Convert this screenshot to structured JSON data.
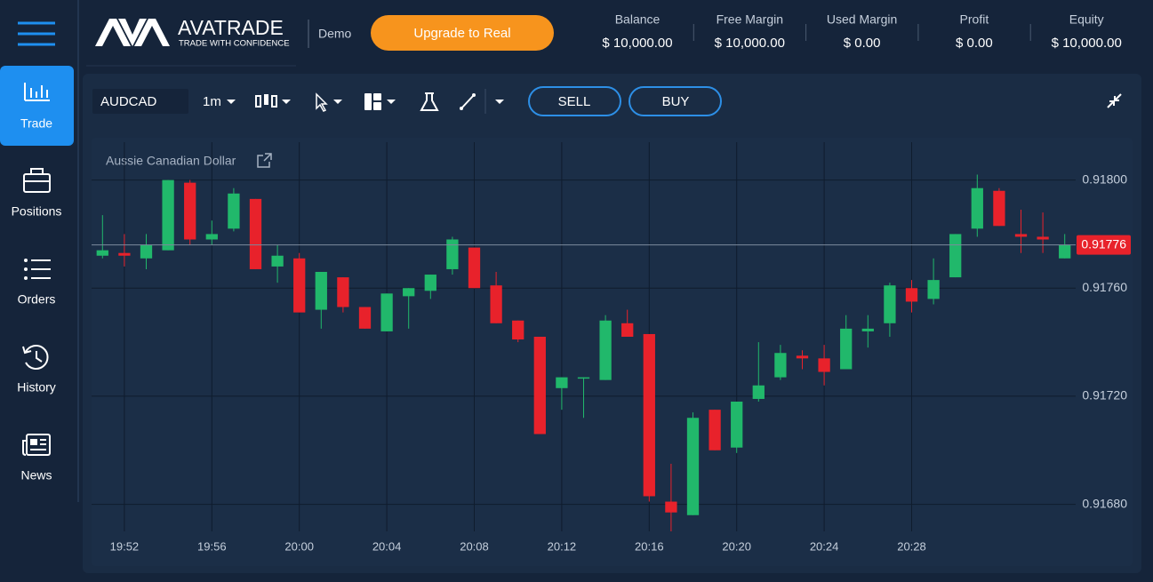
{
  "header": {
    "brand": "AVATRADE",
    "tagline": "TRADE WITH CONFIDENCE",
    "mode": "Demo",
    "upgrade": "Upgrade to Real",
    "stats": [
      {
        "label": "Balance",
        "value": "$ 10,000.00"
      },
      {
        "label": "Free Margin",
        "value": "$ 10,000.00"
      },
      {
        "label": "Used Margin",
        "value": "$ 0.00"
      },
      {
        "label": "Profit",
        "value": "$ 0.00"
      },
      {
        "label": "Equity",
        "value": "$ 10,000.00"
      }
    ]
  },
  "sidebar": {
    "items": [
      "Trade",
      "Positions",
      "Orders",
      "History",
      "News"
    ]
  },
  "toolbar": {
    "symbol": "AUDCAD",
    "interval": "1m",
    "sell": "SELL",
    "buy": "BUY"
  },
  "chart_data": {
    "type": "candlestick",
    "title": "Aussie Canadian Dollar",
    "categories": [
      null,
      "19:52",
      null,
      null,
      null,
      "19:56",
      null,
      null,
      null,
      "20:00",
      null,
      null,
      null,
      "20:04",
      null,
      null,
      null,
      "20:08",
      null,
      null,
      null,
      "20:12",
      null,
      null,
      null,
      "20:16",
      null,
      null,
      null,
      "20:20",
      null,
      null,
      null,
      "20:24",
      null,
      null,
      null,
      "20:28",
      null,
      null,
      null,
      null,
      null,
      null,
      null
    ],
    "open": [
      0.91772,
      0.91773,
      0.91771,
      0.91774,
      0.91799,
      0.91778,
      0.91782,
      0.91793,
      0.91768,
      0.91771,
      0.91752,
      0.91764,
      0.91753,
      0.91744,
      0.91757,
      0.91759,
      0.91767,
      0.91775,
      0.91761,
      0.91748,
      0.91742,
      0.91723,
      0.91727,
      0.91726,
      0.91747,
      0.91743,
      0.91681,
      0.91676,
      0.91715,
      0.91701,
      0.91719,
      0.91727,
      0.91735,
      0.91734,
      0.9173,
      0.91744,
      0.91747,
      0.9176,
      0.91756,
      0.91764,
      0.91782,
      0.91796,
      0.9178,
      0.91779,
      0.91771
    ],
    "high": [
      0.91787,
      0.9178,
      0.9178,
      0.918,
      0.918,
      0.91785,
      0.91797,
      0.91793,
      0.91776,
      0.91773,
      0.91766,
      0.91764,
      0.91753,
      0.91758,
      0.9176,
      0.91765,
      0.91779,
      0.91775,
      0.91766,
      0.91748,
      0.91742,
      0.91727,
      0.91727,
      0.9175,
      0.91752,
      0.91743,
      0.91695,
      0.91714,
      0.91715,
      0.91718,
      0.9174,
      0.91739,
      0.91737,
      0.91739,
      0.9175,
      0.9175,
      0.91762,
      0.91763,
      0.91771,
      0.9178,
      0.91802,
      0.91797,
      0.91789,
      0.91788,
      0.9178
    ],
    "low": [
      0.91771,
      0.91768,
      0.91767,
      0.91774,
      0.91776,
      0.91776,
      0.91781,
      0.91767,
      0.91762,
      0.91751,
      0.91745,
      0.91751,
      0.91745,
      0.91744,
      0.91745,
      0.91756,
      0.91765,
      0.9176,
      0.91747,
      0.9174,
      0.91706,
      0.91715,
      0.91712,
      0.91726,
      0.91742,
      0.91681,
      0.9167,
      0.91676,
      0.917,
      0.91699,
      0.91718,
      0.91726,
      0.9173,
      0.91724,
      0.9173,
      0.91738,
      0.91742,
      0.91751,
      0.91754,
      0.91764,
      0.91779,
      0.91783,
      0.91773,
      0.91773,
      0.91771
    ],
    "close": [
      0.91774,
      0.91772,
      0.91776,
      0.918,
      0.91778,
      0.9178,
      0.91795,
      0.91767,
      0.91772,
      0.91751,
      0.91766,
      0.91753,
      0.91745,
      0.91758,
      0.9176,
      0.91765,
      0.91778,
      0.9176,
      0.91747,
      0.91741,
      0.91706,
      0.91727,
      0.91727,
      0.91748,
      0.91742,
      0.91683,
      0.91677,
      0.91712,
      0.917,
      0.91718,
      0.91724,
      0.91736,
      0.91734,
      0.91729,
      0.91745,
      0.91745,
      0.91761,
      0.91755,
      0.91763,
      0.9178,
      0.91797,
      0.91783,
      0.91779,
      0.91778,
      0.91776
    ],
    "up_color": "#21b86b",
    "down_color": "#e8222b",
    "last_price": 0.91776,
    "last_price_color": "#e8222b",
    "ylim": [
      0.9167,
      0.91814
    ],
    "yticks": [
      {
        "value": 0.9168,
        "label": "0.91680"
      },
      {
        "value": 0.9172,
        "label": "0.91720"
      },
      {
        "value": 0.9176,
        "label": "0.91760"
      },
      {
        "value": 0.918,
        "label": "0.91800"
      }
    ],
    "grid": true
  }
}
